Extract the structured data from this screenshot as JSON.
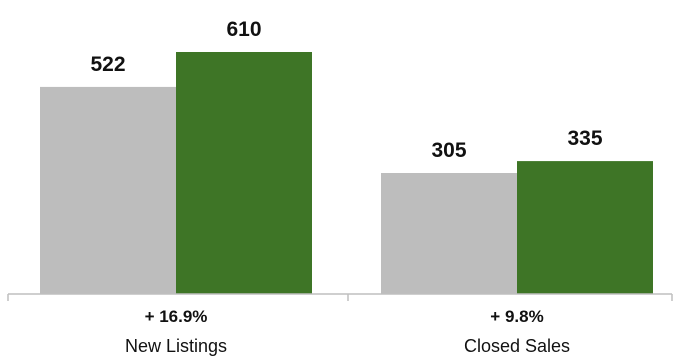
{
  "chart_data": {
    "type": "bar",
    "categories": [
      "New Listings",
      "Closed Sales"
    ],
    "series": [
      {
        "values": [
          522,
          305
        ],
        "color": "#bdbdbd"
      },
      {
        "values": [
          610,
          335
        ],
        "color": "#3e7526"
      }
    ],
    "changes": [
      "+ 16.9%",
      "+ 9.8%"
    ],
    "ylim": [
      0,
      610
    ],
    "grid": false,
    "legend": "none"
  }
}
